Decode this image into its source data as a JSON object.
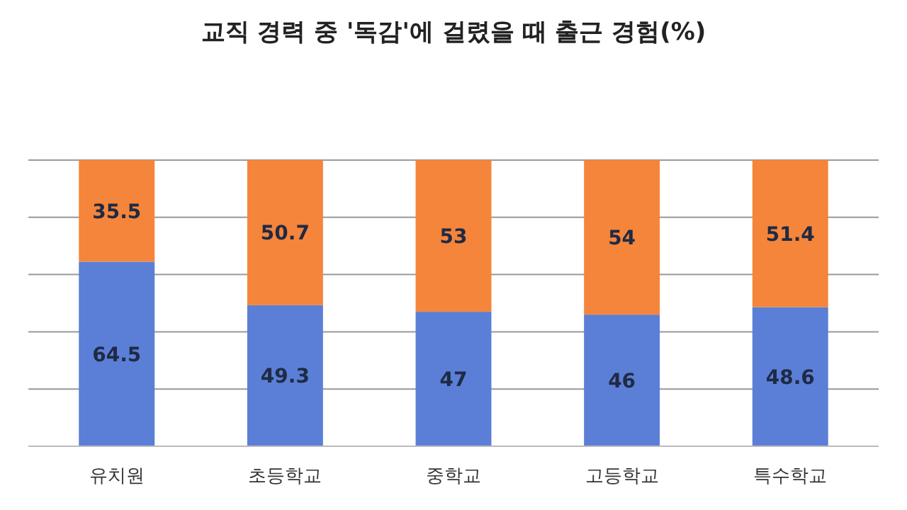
{
  "chart_data": {
    "type": "bar",
    "title": "교직 경력 중 '독감'에 걸렸을 때 출근 경험(%)",
    "categories": [
      "유치원",
      "초등학교",
      "중학교",
      "고등학교",
      "특수학교"
    ],
    "stacked": true,
    "series": [
      {
        "color": "#5b7fd6",
        "values": [
          64.5,
          49.3,
          47,
          46,
          48.6
        ]
      },
      {
        "color": "#f5853a",
        "values": [
          35.5,
          50.7,
          53,
          54,
          51.4
        ]
      }
    ],
    "ylim": [
      0,
      100
    ],
    "yticks": [
      {
        "value": 0,
        "label": null
      },
      {
        "value": 20,
        "label": null
      },
      {
        "value": 40,
        "label": null
      },
      {
        "value": 60,
        "label": null
      },
      {
        "value": 80,
        "label": null
      },
      {
        "value": 100,
        "label": null
      }
    ],
    "tick_labels": "x",
    "grid": "y",
    "data_labels": true
  }
}
